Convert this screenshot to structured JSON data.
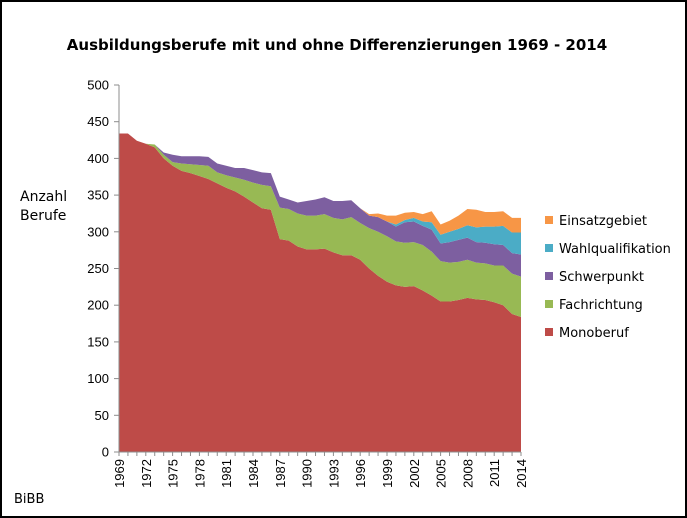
{
  "chart_data": {
    "type": "area",
    "stacked": true,
    "title": "Ausbildungsberufe mit und ohne Differenzierungen 1969 - 2014",
    "ylabel_lines": [
      "Anzahl",
      "Berufe"
    ],
    "xlabel": "",
    "ylim": [
      0,
      500
    ],
    "yticks": [
      0,
      50,
      100,
      150,
      200,
      250,
      300,
      350,
      400,
      450,
      500
    ],
    "grid": false,
    "legend_position": "right",
    "source": "BiBB",
    "x": [
      1969,
      1970,
      1971,
      1972,
      1973,
      1974,
      1975,
      1976,
      1977,
      1978,
      1979,
      1980,
      1981,
      1982,
      1983,
      1984,
      1985,
      1986,
      1987,
      1988,
      1989,
      1990,
      1991,
      1992,
      1993,
      1994,
      1995,
      1996,
      1997,
      1998,
      1999,
      2000,
      2001,
      2002,
      2003,
      2004,
      2005,
      2006,
      2007,
      2008,
      2009,
      2010,
      2011,
      2012,
      2013,
      2014
    ],
    "xtick_labels": [
      "1969",
      "1972",
      "1975",
      "1978",
      "1981",
      "1984",
      "1987",
      "1990",
      "1993",
      "1996",
      "1999",
      "2002",
      "2005",
      "2008",
      "2011",
      "2014"
    ],
    "series": [
      {
        "name": "Monoberuf",
        "color": "#BE4B48",
        "values": [
          434,
          434,
          424,
          420,
          415,
          400,
          390,
          383,
          380,
          376,
          372,
          366,
          360,
          355,
          348,
          340,
          332,
          330,
          290,
          288,
          280,
          276,
          276,
          277,
          272,
          268,
          268,
          262,
          250,
          240,
          232,
          227,
          225,
          226,
          220,
          213,
          205,
          205,
          207,
          210,
          208,
          207,
          204,
          200,
          188,
          184
        ]
      },
      {
        "name": "Fachrichtung",
        "color": "#98B954",
        "values": [
          0,
          0,
          0,
          0,
          4,
          5,
          5,
          10,
          12,
          15,
          18,
          15,
          17,
          19,
          23,
          27,
          32,
          32,
          43,
          43,
          45,
          46,
          46,
          47,
          47,
          49,
          52,
          50,
          55,
          60,
          62,
          60,
          60,
          60,
          62,
          60,
          55,
          53,
          52,
          52,
          50,
          50,
          50,
          54,
          55,
          55
        ]
      },
      {
        "name": "Schwerpunkt",
        "color": "#7D5FA0",
        "values": [
          0,
          0,
          0,
          0,
          0,
          3,
          10,
          10,
          11,
          12,
          12,
          12,
          13,
          13,
          16,
          17,
          17,
          18,
          15,
          13,
          15,
          20,
          22,
          23,
          23,
          25,
          23,
          20,
          17,
          20,
          20,
          20,
          28,
          28,
          26,
          30,
          24,
          28,
          30,
          30,
          28,
          28,
          29,
          28,
          28,
          30
        ]
      },
      {
        "name": "Wahlqualifikation",
        "color": "#4BACC6",
        "values": [
          0,
          0,
          0,
          0,
          0,
          0,
          0,
          0,
          0,
          0,
          0,
          0,
          0,
          0,
          0,
          0,
          0,
          0,
          0,
          0,
          0,
          0,
          0,
          0,
          0,
          0,
          0,
          0,
          0,
          0,
          0,
          3,
          3,
          5,
          6,
          10,
          12,
          14,
          15,
          17,
          20,
          22,
          24,
          26,
          28,
          30
        ]
      },
      {
        "name": "Einsatzgebiet",
        "color": "#F79646",
        "values": [
          0,
          0,
          0,
          0,
          0,
          0,
          0,
          0,
          0,
          0,
          0,
          0,
          0,
          0,
          0,
          0,
          0,
          0,
          0,
          0,
          0,
          0,
          0,
          0,
          0,
          0,
          0,
          0,
          2,
          5,
          8,
          12,
          10,
          8,
          10,
          15,
          14,
          15,
          18,
          22,
          24,
          20,
          20,
          20,
          20,
          20
        ]
      }
    ]
  }
}
